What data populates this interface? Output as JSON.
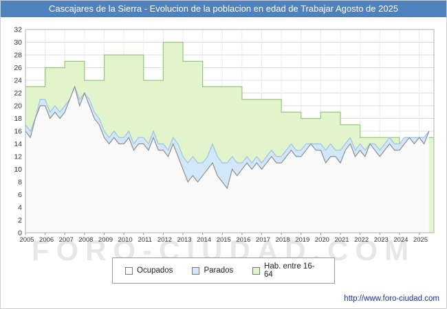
{
  "window": {
    "title": "Cascajares de la Sierra - Evolucion de la poblacion en edad de Trabajar Agosto de 2025"
  },
  "watermark": "FORO-CIUDAD.COM",
  "footer": {
    "url": "http://www.foro-ciudad.com"
  },
  "legend": {
    "items": [
      {
        "label": "Ocupados",
        "color": "#fafafa"
      },
      {
        "label": "Parados",
        "color": "#d2e7f7"
      },
      {
        "label": "Hab. entre 16-64",
        "color": "#e2f4cb"
      }
    ]
  },
  "chart_data": {
    "type": "area",
    "title": "Cascajares de la Sierra - Evolucion de la poblacion en edad de Trabajar Agosto de 2025",
    "xlabel": "",
    "ylabel": "",
    "xlim": [
      2005,
      2025.75
    ],
    "ylim": [
      0,
      32
    ],
    "x_ticks": [
      2005,
      2006,
      2007,
      2008,
      2009,
      2010,
      2011,
      2012,
      2013,
      2014,
      2015,
      2016,
      2017,
      2018,
      2019,
      2020,
      2021,
      2022,
      2023,
      2024,
      2025
    ],
    "y_ticks": [
      0,
      2,
      4,
      6,
      8,
      10,
      12,
      14,
      16,
      18,
      20,
      22,
      24,
      26,
      28,
      30,
      32
    ],
    "grid": true,
    "legend_position": "bottom",
    "series": [
      {
        "name": "Hab. entre 16-64",
        "render": "step-area-yearly",
        "x": [
          2005,
          2006,
          2007,
          2008,
          2009,
          2010,
          2011,
          2012,
          2013,
          2014,
          2015,
          2016,
          2017,
          2018,
          2019,
          2020,
          2021,
          2022,
          2023,
          2024,
          2025
        ],
        "values": [
          23,
          26,
          27,
          24,
          28,
          28,
          24,
          30,
          27,
          23,
          23,
          21,
          21,
          19,
          18,
          19,
          17,
          15,
          15,
          14,
          15
        ],
        "fill": "#e2f4cb",
        "stroke": "#9cc27a"
      },
      {
        "name": "Parados",
        "render": "area-stacked-on-ocupados",
        "x_start": 2005,
        "x_step": 0.25,
        "values": [
          1,
          1,
          0,
          1,
          1,
          1,
          1,
          1,
          1,
          0,
          0,
          1,
          0,
          1,
          1,
          1,
          1,
          1,
          1,
          1,
          1,
          1,
          1,
          1,
          1,
          1,
          1,
          1,
          1,
          1,
          1,
          2,
          2,
          3,
          3,
          3,
          2,
          2,
          3,
          3,
          3,
          4,
          2,
          2,
          1,
          1,
          1,
          1,
          1,
          1,
          1,
          1,
          1,
          1,
          1,
          1,
          1,
          1,
          0,
          1,
          1,
          2,
          2,
          1,
          2,
          1,
          1,
          1,
          1,
          1,
          0,
          1,
          1,
          1,
          1,
          1,
          1,
          1,
          0,
          1,
          0,
          1,
          0
        ],
        "fill": "#d2e7f7",
        "stroke": "#9dc3e6"
      },
      {
        "name": "Ocupados",
        "render": "area",
        "x_start": 2005,
        "x_step": 0.25,
        "values": [
          16,
          15,
          18,
          20,
          20,
          18,
          19,
          18,
          19,
          21,
          23,
          20,
          22,
          20,
          18,
          17,
          15,
          14,
          15,
          14,
          14,
          15,
          13,
          14,
          14,
          13,
          15,
          13,
          13,
          12,
          14,
          12,
          10,
          8,
          9,
          8,
          9,
          10,
          11,
          9,
          8,
          7,
          10,
          9,
          10,
          11,
          10,
          11,
          10,
          11,
          12,
          11,
          11,
          12,
          13,
          12,
          12,
          13,
          14,
          13,
          13,
          11,
          12,
          12,
          11,
          13,
          14,
          12,
          13,
          12,
          14,
          13,
          12,
          13,
          14,
          13,
          13,
          14,
          15,
          14,
          15,
          14,
          16
        ],
        "fill": "#fafafa",
        "stroke": "#8f8f8f"
      }
    ]
  }
}
